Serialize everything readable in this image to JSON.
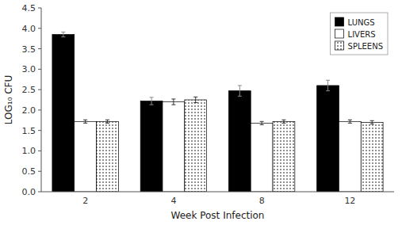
{
  "chart_data": {
    "type": "bar",
    "xlabel": "Week Post Infection",
    "ylabel": "LOG₁₀ CFU",
    "categories": [
      "2",
      "4",
      "8",
      "12"
    ],
    "series": [
      {
        "name": "LUNGS",
        "color": "#000000",
        "values": [
          3.85,
          2.22,
          2.47,
          2.6
        ],
        "errors": [
          0.06,
          0.09,
          0.13,
          0.13
        ]
      },
      {
        "name": "LIVERS",
        "color": "#ffffff",
        "values": [
          1.72,
          2.2,
          1.68,
          1.72
        ],
        "errors": [
          0.04,
          0.07,
          0.04,
          0.04
        ]
      },
      {
        "name": "SPLEENS",
        "color": "#ffffff",
        "values": [
          1.72,
          2.25,
          1.72,
          1.7
        ],
        "errors": [
          0.04,
          0.07,
          0.04,
          0.04
        ]
      }
    ],
    "ylim": [
      0,
      4.5
    ],
    "yticks": [
      {
        "value": 0,
        "label": "0.0"
      },
      0.5,
      {
        "value": 1,
        "label": "1.0"
      },
      1.5,
      {
        "value": 2,
        "label": "2.0"
      },
      2.5,
      {
        "value": 3,
        "label": "3.0"
      },
      3.5,
      {
        "value": 4,
        "label": "4.0"
      },
      4.5
    ],
    "grid": false,
    "legend": "upper-right"
  }
}
